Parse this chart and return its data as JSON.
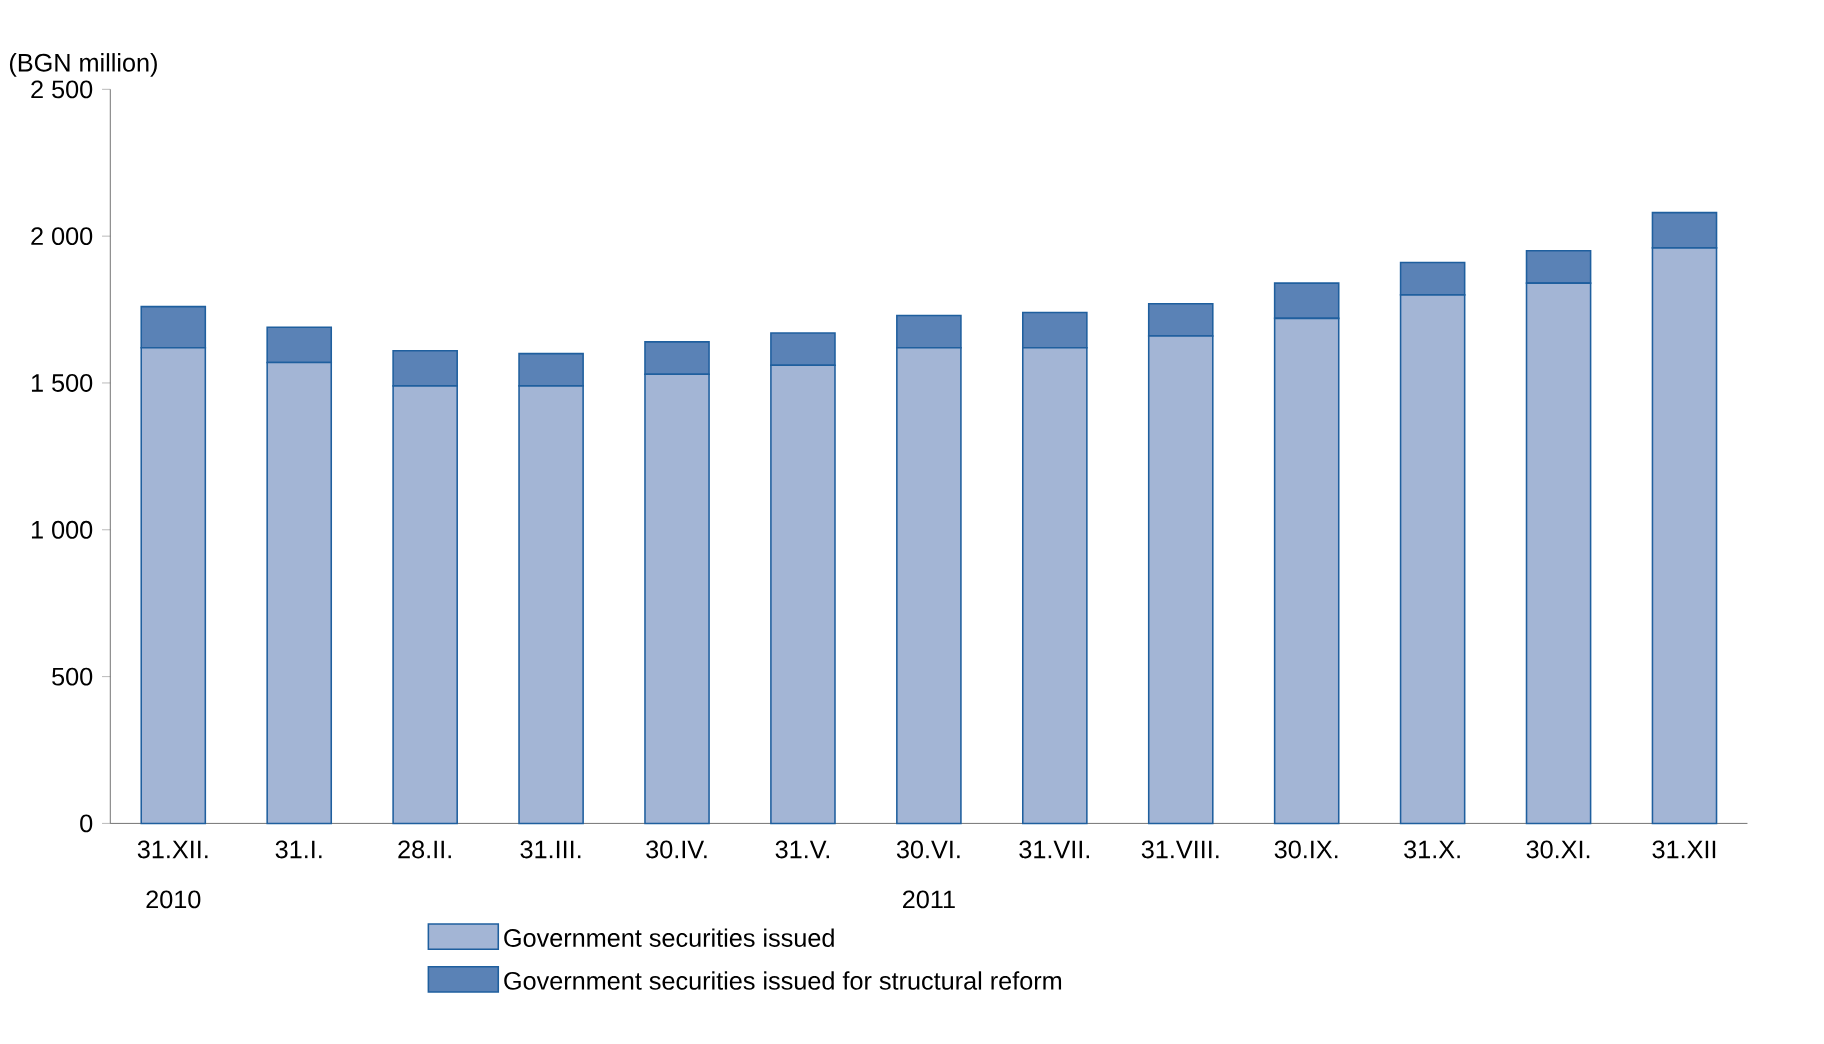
{
  "chart_data": {
    "type": "bar",
    "stacked": true,
    "ylabel": "(BGN million)",
    "categories": [
      "31.XII.",
      "31.I.",
      "28.II.",
      "31.III.",
      "30.IV.",
      "31.V.",
      "30.VI.",
      "31.VII.",
      "31.VIII.",
      "30.IX.",
      "31.X.",
      "30.XI.",
      "31.XII"
    ],
    "series": [
      {
        "name": "Government securities issued",
        "color": "#a3b5d5",
        "values": [
          1620,
          1570,
          1490,
          1490,
          1530,
          1560,
          1620,
          1620,
          1660,
          1720,
          1800,
          1840,
          1960
        ]
      },
      {
        "name": "Government securities issued for structural reform",
        "color": "#5a82b6",
        "values": [
          140,
          120,
          120,
          110,
          110,
          110,
          110,
          120,
          110,
          120,
          110,
          110,
          120
        ]
      }
    ],
    "ylim": [
      0,
      2500
    ],
    "yticks": [
      0,
      500,
      {
        "value": 1000,
        "label": "1 000"
      },
      {
        "value": 1500,
        "label": "1 500"
      },
      {
        "value": 2000,
        "label": "2 000"
      },
      {
        "value": 2500,
        "label": "2 500"
      }
    ],
    "annotations": [
      "2010",
      "2011"
    ],
    "legend": "bottom",
    "grid": false
  }
}
